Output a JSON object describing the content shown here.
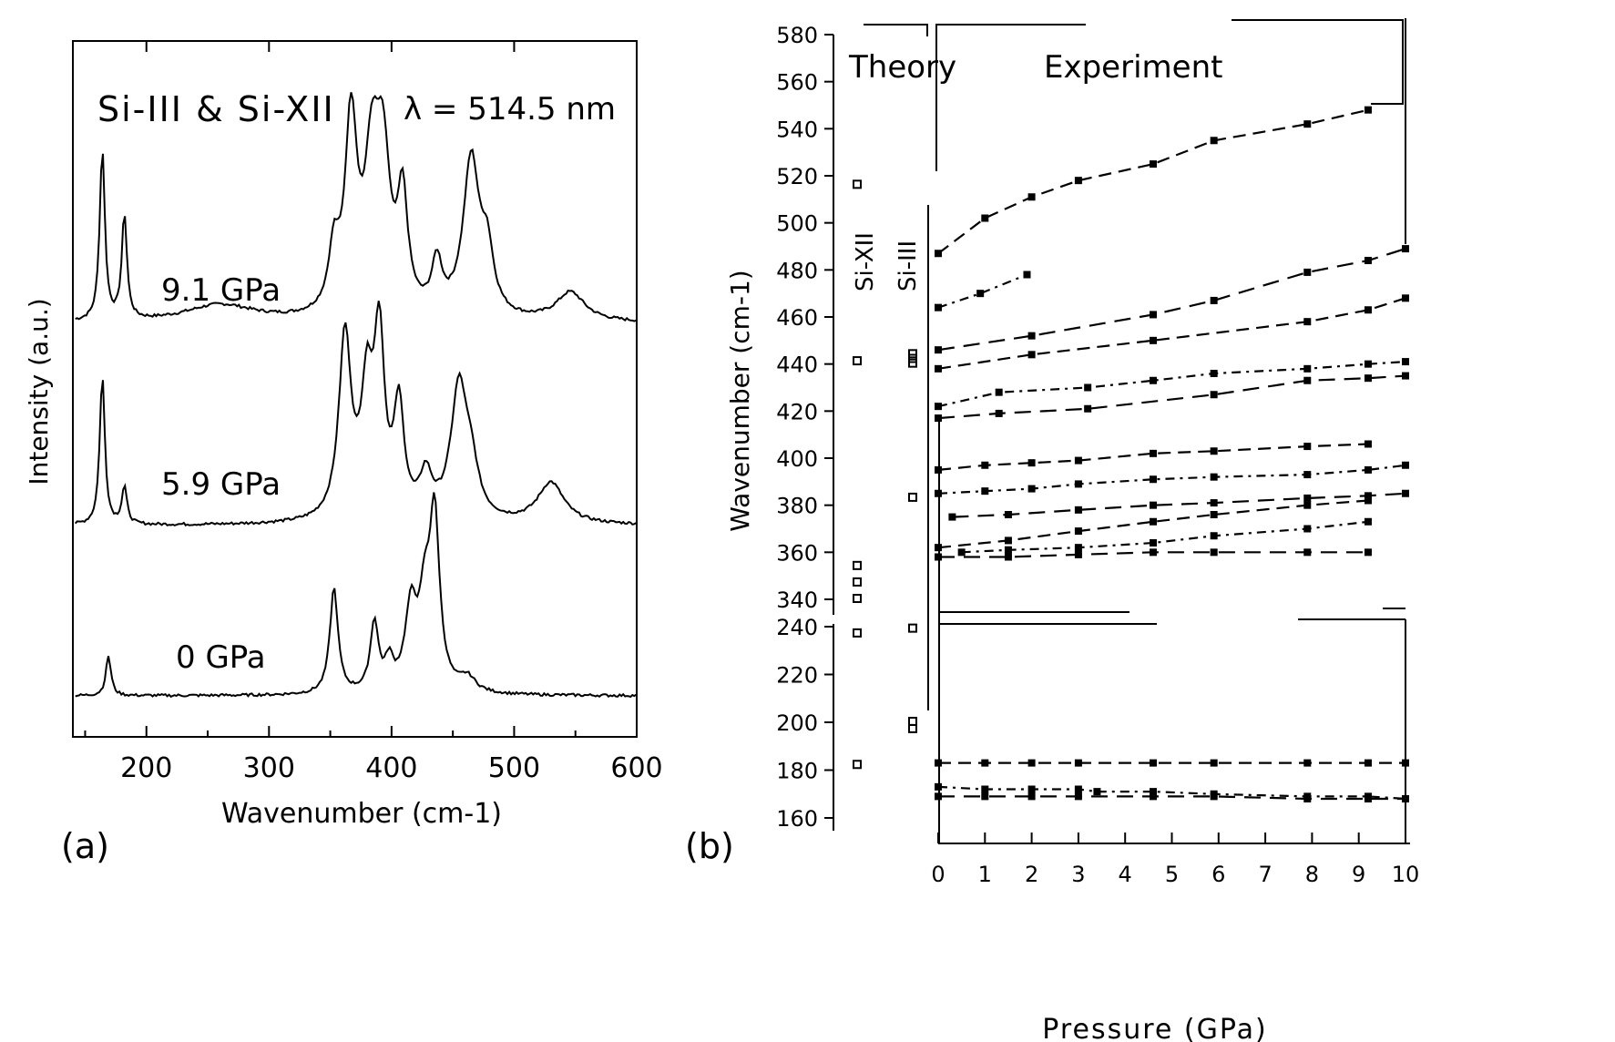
{
  "chart_data": [
    {
      "panel": "(a)",
      "type": "line",
      "title": "Si-III & Si-XII",
      "annotation": "λ = 514.5 nm",
      "xlabel": "Wavenumber (cm-1)",
      "ylabel": "Intensity (a.u.)",
      "xlim": [
        140,
        600
      ],
      "xticks": [
        "200",
        "300",
        "400",
        "500",
        "600"
      ],
      "series": [
        {
          "name": "9.1 GPa",
          "peaks": [
            {
              "x": 164,
              "h": 0.9,
              "w": 2.5
            },
            {
              "x": 182,
              "h": 0.55,
              "w": 2.5
            },
            {
              "x": 260,
              "h": 0.09,
              "w": 35
            },
            {
              "x": 353,
              "h": 0.3,
              "w": 5
            },
            {
              "x": 367,
              "h": 1.0,
              "w": 6
            },
            {
              "x": 384,
              "h": 0.72,
              "w": 7
            },
            {
              "x": 393,
              "h": 0.75,
              "w": 7
            },
            {
              "x": 409,
              "h": 0.58,
              "w": 5
            },
            {
              "x": 437,
              "h": 0.26,
              "w": 5
            },
            {
              "x": 465,
              "h": 0.82,
              "w": 8
            },
            {
              "x": 478,
              "h": 0.3,
              "w": 6
            },
            {
              "x": 546,
              "h": 0.15,
              "w": 14
            }
          ]
        },
        {
          "name": "5.9 GPa",
          "peaks": [
            {
              "x": 164,
              "h": 0.8,
              "w": 2.5
            },
            {
              "x": 182,
              "h": 0.2,
              "w": 2.5
            },
            {
              "x": 362,
              "h": 0.98,
              "w": 6
            },
            {
              "x": 380,
              "h": 0.65,
              "w": 6
            },
            {
              "x": 390,
              "h": 0.92,
              "w": 5
            },
            {
              "x": 406,
              "h": 0.58,
              "w": 5
            },
            {
              "x": 428,
              "h": 0.22,
              "w": 6
            },
            {
              "x": 455,
              "h": 0.7,
              "w": 8
            },
            {
              "x": 465,
              "h": 0.22,
              "w": 7
            },
            {
              "x": 530,
              "h": 0.22,
              "w": 13
            }
          ]
        },
        {
          "name": "0 GPa",
          "peaks": [
            {
              "x": 169,
              "h": 0.22,
              "w": 2.5
            },
            {
              "x": 353,
              "h": 0.58,
              "w": 4
            },
            {
              "x": 386,
              "h": 0.38,
              "w": 4
            },
            {
              "x": 398,
              "h": 0.15,
              "w": 4
            },
            {
              "x": 416,
              "h": 0.45,
              "w": 6
            },
            {
              "x": 427,
              "h": 0.4,
              "w": 5
            },
            {
              "x": 435,
              "h": 0.95,
              "w": 5
            },
            {
              "x": 462,
              "h": 0.08,
              "w": 8
            }
          ]
        }
      ]
    },
    {
      "panel": "(b)",
      "type": "scatter",
      "xlabel": "Pressure (GPa)",
      "ylabel": "Wavenumber (cm-1)",
      "xlim": [
        0,
        10
      ],
      "xticks": [
        "0",
        "1",
        "2",
        "3",
        "4",
        "5",
        "6",
        "7",
        "8",
        "9",
        "10"
      ],
      "ylim_upper": [
        340,
        580
      ],
      "ylim_lower": [
        160,
        240
      ],
      "yticks": [
        "160",
        "180",
        "200",
        "220",
        "240",
        "340",
        "360",
        "380",
        "400",
        "420",
        "440",
        "460",
        "480",
        "500",
        "520",
        "540",
        "560",
        "580"
      ],
      "header_labels": {
        "theory": "Theory",
        "experiment": "Experiment"
      },
      "phase_labels": {
        "si12": "Si-XII",
        "si3": "Si-III"
      },
      "theory_points": {
        "si12": [
          516,
          441,
          354,
          347,
          340,
          237,
          182
        ],
        "si3": [
          444,
          442,
          440,
          383,
          239,
          200,
          197
        ]
      },
      "modes": [
        {
          "x": [
            0,
            1,
            2,
            3,
            4.6,
            5.9,
            7.9,
            9.2
          ],
          "y": [
            487,
            502,
            511,
            518,
            525,
            535,
            542,
            548
          ]
        },
        {
          "x": [
            0,
            0.9,
            1.9
          ],
          "y": [
            464,
            470,
            478
          ]
        },
        {
          "x": [
            0,
            2,
            4.6,
            5.9,
            7.9,
            9.2,
            10
          ],
          "y": [
            446,
            452,
            461,
            467,
            479,
            484,
            489
          ]
        },
        {
          "x": [
            0,
            2,
            4.6,
            7.9,
            9.2,
            10
          ],
          "y": [
            438,
            444,
            450,
            458,
            463,
            468
          ]
        },
        {
          "x": [
            0,
            1.3,
            3.2,
            4.6,
            5.9,
            7.9,
            9.2,
            10
          ],
          "y": [
            422,
            428,
            430,
            433,
            436,
            438,
            440,
            441
          ]
        },
        {
          "x": [
            0,
            1.3,
            3.2,
            5.9,
            7.9,
            9.2,
            10
          ],
          "y": [
            417,
            419,
            421,
            427,
            433,
            434,
            435
          ]
        },
        {
          "x": [
            0,
            1,
            2,
            3,
            4.6,
            5.9,
            7.9,
            9.2
          ],
          "y": [
            395,
            397,
            398,
            399,
            402,
            403,
            405,
            406
          ]
        },
        {
          "x": [
            0,
            1,
            2,
            3,
            4.6,
            5.9,
            7.9,
            9.2,
            10
          ],
          "y": [
            385,
            386,
            387,
            389,
            391,
            392,
            393,
            395,
            397
          ]
        },
        {
          "x": [
            0.3,
            1.5,
            3,
            4.6,
            5.9,
            7.9,
            9.2,
            10
          ],
          "y": [
            375,
            376,
            378,
            380,
            381,
            383,
            384,
            385
          ]
        },
        {
          "x": [
            0,
            1.5,
            3,
            4.6,
            5.9,
            7.9,
            9.2
          ],
          "y": [
            362,
            365,
            369,
            373,
            376,
            380,
            382
          ]
        },
        {
          "x": [
            0.5,
            1.5,
            3,
            4.6,
            5.9,
            7.9,
            9.2
          ],
          "y": [
            360,
            361,
            362,
            364,
            367,
            370,
            373
          ]
        },
        {
          "x": [
            0,
            1.5,
            3,
            4.6,
            5.9,
            7.9,
            9.2
          ],
          "y": [
            358,
            358,
            359,
            360,
            360,
            360,
            360
          ]
        },
        {
          "x": [
            0,
            1,
            2,
            3,
            4.6,
            5.9,
            7.9,
            9.2,
            10
          ],
          "y": [
            183,
            183,
            183,
            183,
            183,
            183,
            183,
            183,
            183
          ]
        },
        {
          "x": [
            0,
            1,
            2,
            3,
            3.4,
            4.6,
            5.9,
            7.9,
            9.2,
            10
          ],
          "y": [
            173,
            172,
            172,
            172,
            171,
            171,
            170,
            169,
            169,
            168
          ]
        },
        {
          "x": [
            0,
            1,
            2,
            3,
            4.6,
            5.9,
            7.9,
            9.2,
            10
          ],
          "y": [
            169,
            169,
            169,
            169,
            169,
            169,
            168,
            168,
            168
          ]
        }
      ]
    }
  ],
  "panel_labels": {
    "a": "(a)",
    "b": "(b)"
  }
}
